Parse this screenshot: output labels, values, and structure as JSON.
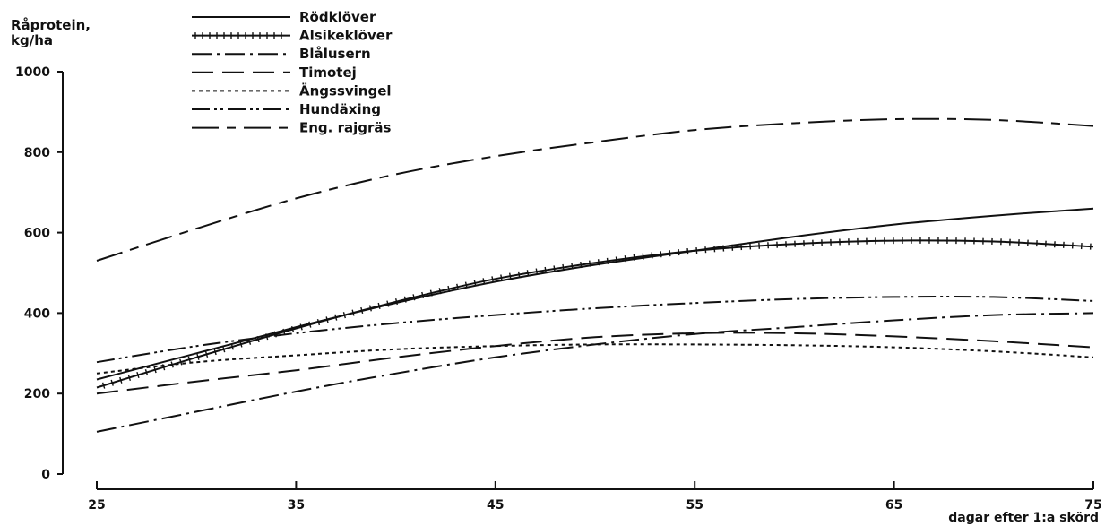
{
  "chart_data": {
    "type": "line",
    "title": "",
    "ylabel_line1": "Råprotein,",
    "ylabel_line2": "kg/ha",
    "xlabel": "dagar efter 1:a skörd",
    "xlim": [
      25,
      75
    ],
    "ylim": [
      0,
      1000
    ],
    "xticks": [
      25,
      35,
      45,
      55,
      65,
      75
    ],
    "yticks": [
      0,
      200,
      400,
      600,
      800,
      1000
    ],
    "grid": false,
    "legend_position": "top-left",
    "x": [
      25,
      30,
      35,
      40,
      45,
      50,
      55,
      60,
      65,
      70,
      75
    ],
    "series": [
      {
        "name": "Rödklöver",
        "dash": "solid",
        "values": [
          235,
          300,
          365,
          425,
          478,
          520,
          555,
          590,
          620,
          642,
          660
        ]
      },
      {
        "name": "Alsikeklöver",
        "dash": "crossed",
        "values": [
          215,
          290,
          362,
          428,
          485,
          525,
          555,
          572,
          580,
          578,
          565
        ]
      },
      {
        "name": "Blålusern",
        "dash": "dashdot",
        "values": [
          105,
          155,
          205,
          250,
          290,
          322,
          348,
          365,
          382,
          395,
          400
        ]
      },
      {
        "name": "Timotej",
        "dash": "longdash",
        "values": [
          200,
          230,
          258,
          290,
          318,
          340,
          350,
          350,
          342,
          330,
          315
        ]
      },
      {
        "name": "Ängssvingel",
        "dash": "dotted",
        "values": [
          250,
          278,
          295,
          310,
          318,
          322,
          322,
          320,
          315,
          305,
          290
        ]
      },
      {
        "name": "Hundäxing",
        "dash": "dashdotdot",
        "values": [
          278,
          318,
          350,
          375,
          395,
          412,
          425,
          435,
          440,
          440,
          430
        ]
      },
      {
        "name": "Eng. rajgräs",
        "dash": "longshort",
        "values": [
          530,
          610,
          685,
          745,
          790,
          825,
          855,
          872,
          882,
          880,
          865
        ]
      }
    ]
  }
}
